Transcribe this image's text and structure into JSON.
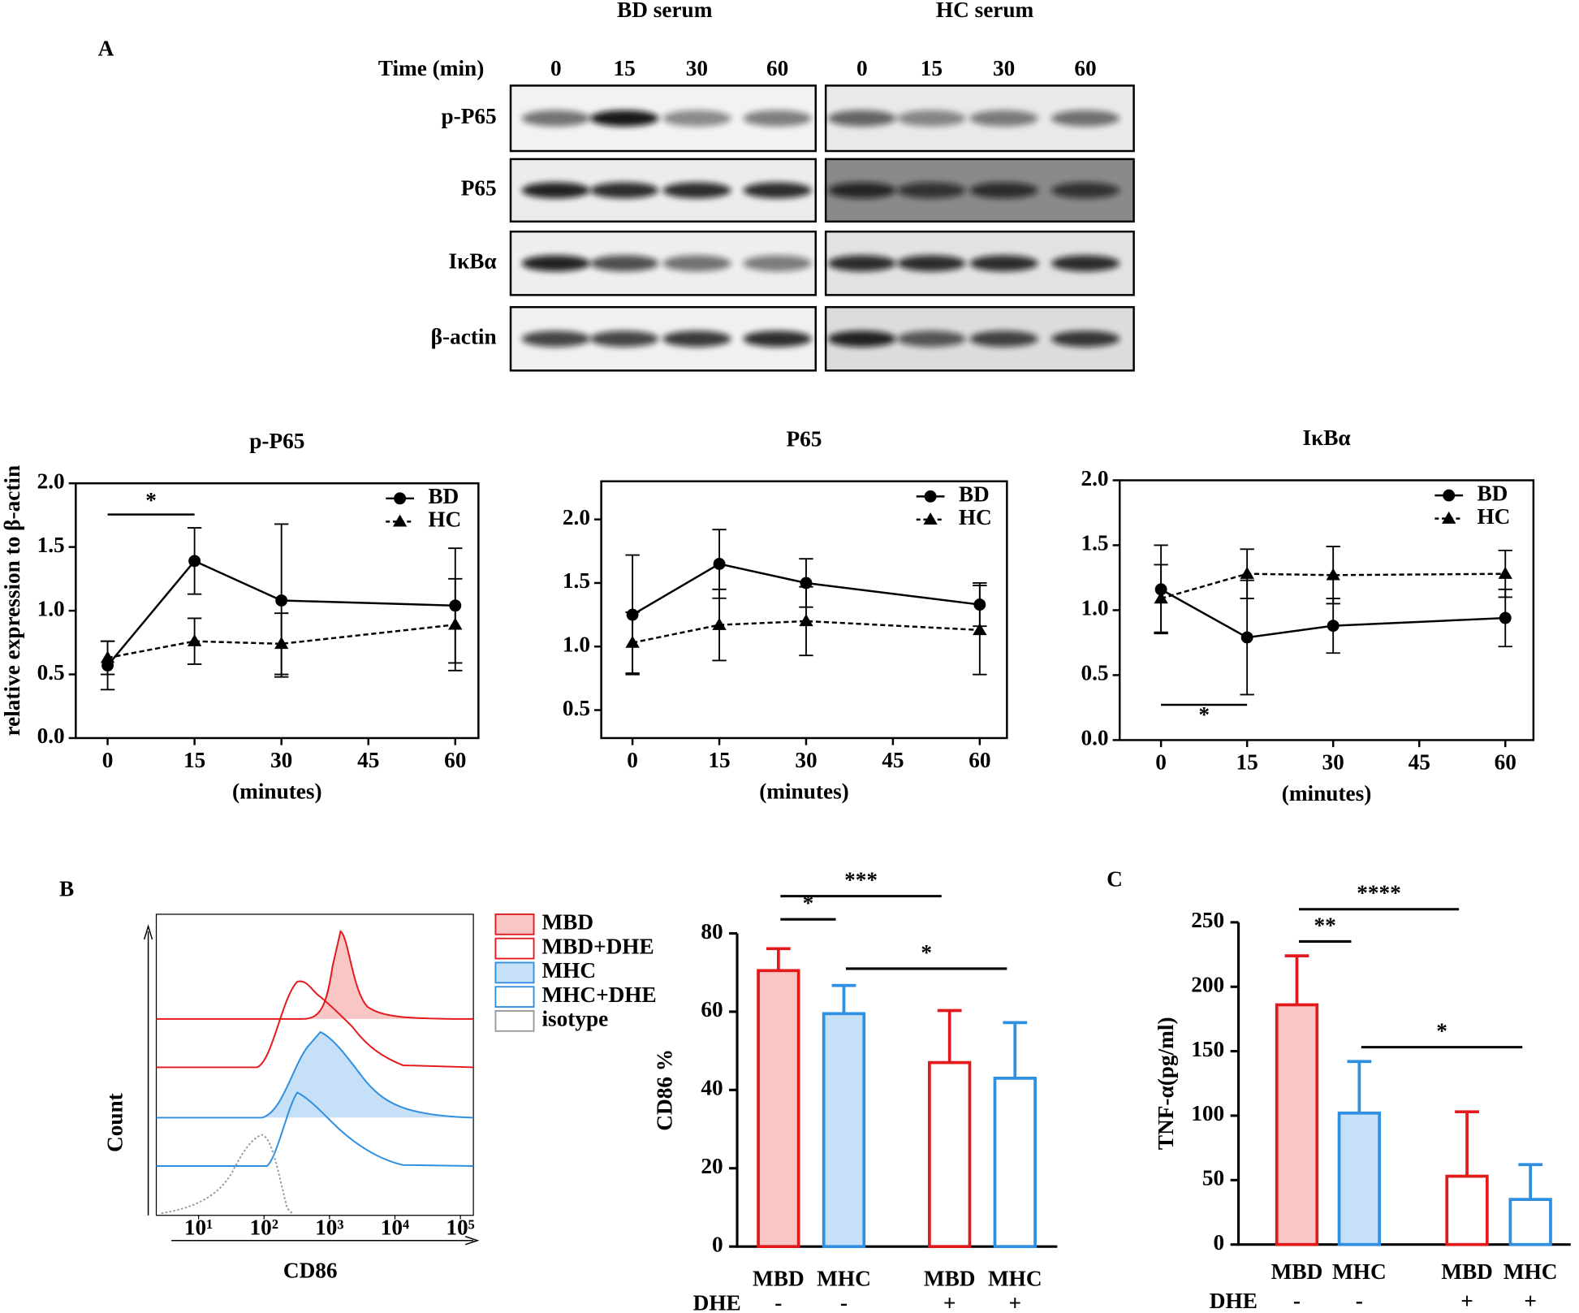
{
  "western_blot": {
    "panel": "A",
    "groups": [
      "BD serum",
      "HC serum"
    ],
    "time_label": "Time (min)",
    "times": [
      "0",
      "15",
      "30",
      "60"
    ],
    "rows": [
      "p-P65",
      "P65",
      "IκBα",
      "β-actin"
    ]
  },
  "chart_data": [
    {
      "type": "line",
      "title": "p-P65",
      "ylabel": "relative expression to β-actin",
      "xlabel": "(minutes)",
      "x": [
        0,
        15,
        30,
        60
      ],
      "xlim": [
        -5.5,
        64
      ],
      "xticks": [
        0,
        15,
        30,
        45,
        60
      ],
      "ylim": [
        0,
        2
      ],
      "yticks": [
        {
          "value": 0,
          "label": "0.0"
        },
        {
          "value": 0.5,
          "label": "0.5"
        },
        {
          "value": 1,
          "label": "1.0"
        },
        {
          "value": 1.5,
          "label": "1.5"
        },
        {
          "value": 2,
          "label": "2.0"
        }
      ],
      "series": [
        {
          "name": "BD",
          "color": "#000000",
          "marker": "circle",
          "dashed": false,
          "values": [
            0.57,
            1.39,
            1.08,
            1.04
          ],
          "errors": [
            0.19,
            0.26,
            0.6,
            0.45
          ]
        },
        {
          "name": "HC",
          "color": "#000000",
          "marker": "triangle",
          "dashed": true,
          "values": [
            0.63,
            0.76,
            0.74,
            0.89
          ],
          "errors": [
            0.13,
            0.18,
            0.24,
            0.36
          ]
        }
      ],
      "annotations": [
        {
          "text": "*",
          "x": [
            0,
            15
          ]
        }
      ]
    },
    {
      "type": "line",
      "title": "P65",
      "xlabel": "(minutes)",
      "x": [
        0,
        15,
        30,
        60
      ],
      "xlim": [
        -5.4,
        64.7
      ],
      "xticks": [
        0,
        15,
        30,
        45,
        60
      ],
      "ylim": [
        0.28,
        2.3
      ],
      "yticks": [
        {
          "value": 0.5,
          "label": "0.5"
        },
        {
          "value": 1,
          "label": "1.0"
        },
        {
          "value": 1.5,
          "label": "1.5"
        },
        {
          "value": 2,
          "label": "2.0"
        }
      ],
      "series": [
        {
          "name": "BD",
          "color": "#000000",
          "marker": "circle",
          "dashed": false,
          "values": [
            1.25,
            1.65,
            1.5,
            1.33
          ],
          "errors": [
            0.47,
            0.27,
            0.19,
            0.17
          ]
        },
        {
          "name": "HC",
          "color": "#000000",
          "marker": "triangle",
          "dashed": true,
          "values": [
            1.03,
            1.17,
            1.2,
            1.13
          ],
          "errors": [
            0.24,
            0.28,
            0.27,
            0.35
          ]
        }
      ],
      "annotations": []
    },
    {
      "type": "line",
      "title": "IκBα",
      "xlabel": "(minutes)",
      "x": [
        0,
        15,
        30,
        60
      ],
      "xlim": [
        -7.2,
        64.9
      ],
      "xticks": [
        0,
        15,
        30,
        45,
        60
      ],
      "ylim": [
        0,
        2
      ],
      "yticks": [
        {
          "value": 0,
          "label": "0.0"
        },
        {
          "value": 0.5,
          "label": "0.5"
        },
        {
          "value": 1,
          "label": "1.0"
        },
        {
          "value": 1.5,
          "label": "1.5"
        },
        {
          "value": 2,
          "label": "2.0"
        }
      ],
      "series": [
        {
          "name": "BD",
          "color": "#000000",
          "marker": "circle",
          "dashed": false,
          "values": [
            1.16,
            0.79,
            0.88,
            0.94
          ],
          "errors": [
            0.34,
            0.44,
            0.21,
            0.22
          ]
        },
        {
          "name": "HC",
          "color": "#000000",
          "marker": "triangle",
          "dashed": true,
          "values": [
            1.09,
            1.28,
            1.27,
            1.28
          ],
          "errors": [
            0.26,
            0.19,
            0.22,
            0.18
          ]
        }
      ],
      "annotations": [
        {
          "text": "*",
          "x": [
            0,
            15
          ]
        }
      ]
    },
    {
      "type": "overlay",
      "panel": "B",
      "xlabel": "CD86",
      "ylabel": "Count",
      "log_x": true,
      "xlim": [
        2.26,
        158000
      ],
      "xticks": [
        {
          "value": 10,
          "label": "10¹"
        },
        {
          "value": 100,
          "label": "10²"
        },
        {
          "value": 1000,
          "label": "10³"
        },
        {
          "value": 10000,
          "label": "10⁴"
        },
        {
          "value": 100000,
          "label": "10⁵"
        }
      ],
      "series": [
        {
          "name": "MBD",
          "color": "#e31a1c",
          "fill": "#f9c6c6"
        },
        {
          "name": "MBD+DHE",
          "color": "#e31a1c"
        },
        {
          "name": "MHC",
          "color": "#2f8fe0",
          "fill": "#c6e0f7"
        },
        {
          "name": "MHC+DHE",
          "color": "#2f8fe0"
        },
        {
          "name": "isotype",
          "color": "#999999"
        }
      ]
    },
    {
      "type": "bar",
      "ylabel": "CD86 %",
      "categories": [
        "MBD",
        "MHC",
        "MBD",
        "MHC"
      ],
      "dhe_label": "DHE",
      "dhe": [
        "-",
        "-",
        "+",
        "+"
      ],
      "values": [
        70.5,
        59.5,
        47,
        43
      ],
      "errors": [
        5.6,
        7.2,
        13.3,
        14.2
      ],
      "colors": [
        "#e31a1c",
        "#2f8fe0",
        "#e31a1c",
        "#2f8fe0"
      ],
      "fills": [
        "#f9c6c6",
        "#c6e0f7",
        "#ffffff",
        "#ffffff"
      ],
      "ylim": [
        0,
        80
      ],
      "yticks": [
        0,
        20,
        40,
        60,
        80
      ],
      "annotations": [
        {
          "text": "*",
          "from": 0,
          "to": 1
        },
        {
          "text": "***",
          "from": 0,
          "to": 2
        },
        {
          "text": "*",
          "from": 1,
          "to": 3
        }
      ]
    },
    {
      "type": "bar",
      "panel": "C",
      "ylabel": "TNF-α(pg/ml)",
      "categories": [
        "MBD",
        "MHC",
        "MBD",
        "MHC"
      ],
      "dhe_label": "DHE",
      "dhe": [
        "-",
        "-",
        "+",
        "+"
      ],
      "values": [
        186,
        102,
        53,
        35
      ],
      "errors": [
        38,
        40,
        50,
        27
      ],
      "colors": [
        "#e31a1c",
        "#2f8fe0",
        "#e31a1c",
        "#2f8fe0"
      ],
      "fills": [
        "#f9c6c6",
        "#c6e0f7",
        "#ffffff",
        "#ffffff"
      ],
      "ylim": [
        0,
        250
      ],
      "yticks": [
        0,
        50,
        100,
        150,
        200,
        250
      ],
      "annotations": [
        {
          "text": "**",
          "from": 0,
          "to": 1
        },
        {
          "text": "****",
          "from": 0,
          "to": 2
        },
        {
          "text": "*",
          "from": 1,
          "to": 3
        }
      ]
    }
  ]
}
